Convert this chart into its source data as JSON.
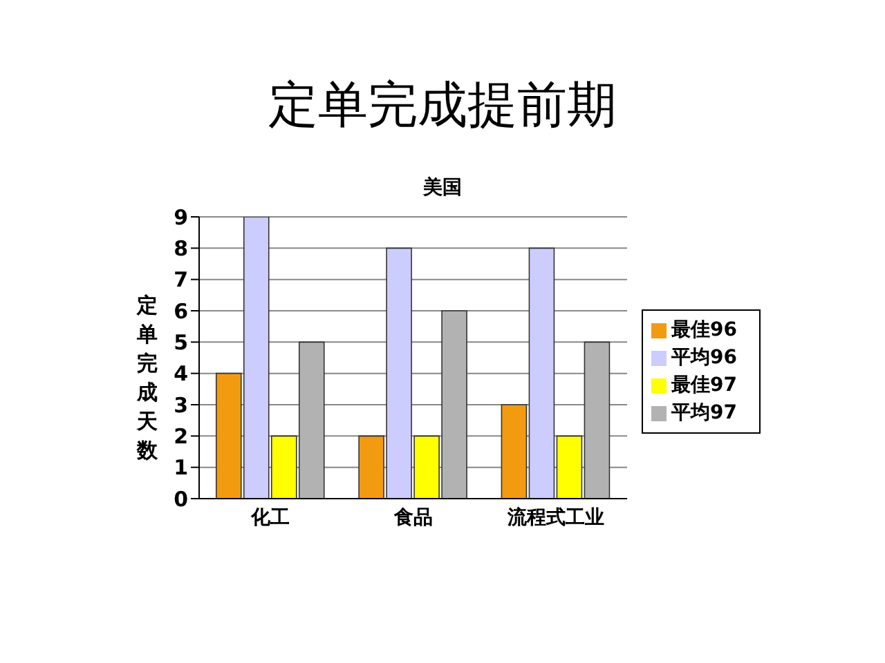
{
  "chart_data": {
    "type": "bar",
    "title": "定单完成提前期",
    "subtitle": "美国",
    "ylabel": "定单完成天数",
    "categories": [
      "化工",
      "食品",
      "流程式工业"
    ],
    "series": [
      {
        "name": "最佳96",
        "color": "#f29b11",
        "values": [
          4,
          2,
          3
        ]
      },
      {
        "name": "平均96",
        "color": "#ccccff",
        "values": [
          9,
          8,
          8
        ]
      },
      {
        "name": "最佳97",
        "color": "#ffff00",
        "values": [
          2,
          2,
          2
        ]
      },
      {
        "name": "平均97",
        "color": "#b2b2b2",
        "values": [
          5,
          6,
          5
        ]
      }
    ],
    "ylim": [
      0,
      9
    ],
    "yticks": [
      0,
      1,
      2,
      3,
      4,
      5,
      6,
      7,
      8,
      9
    ],
    "grid": "y",
    "legend": "right"
  }
}
